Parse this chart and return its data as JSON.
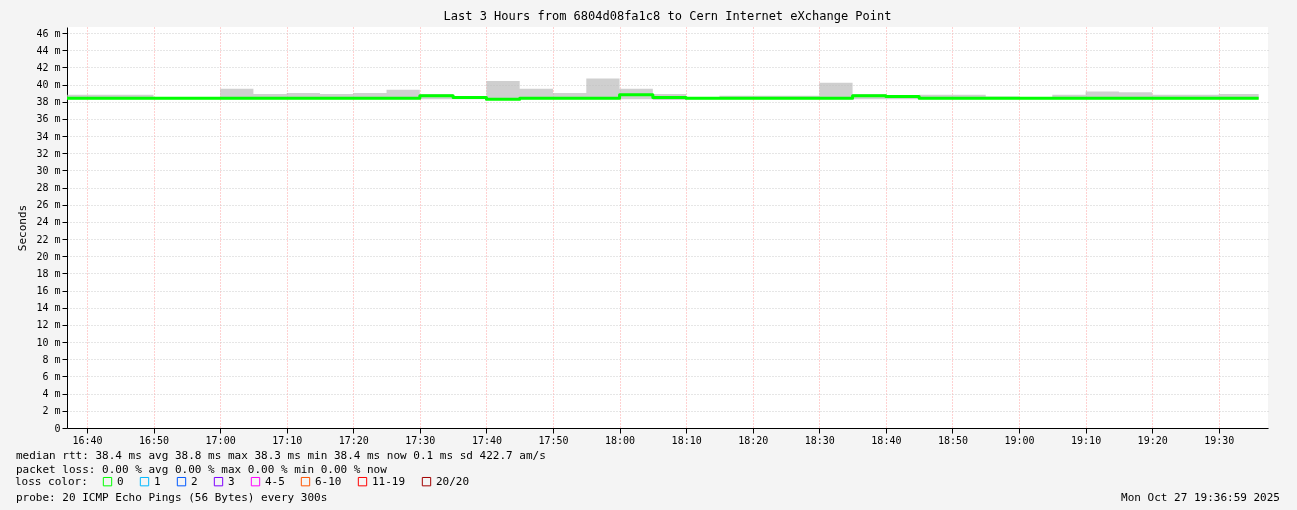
{
  "chart_data": {
    "type": "step",
    "title": "Last 3 Hours from 6804d08fa1c8 to Cern Internet eXchange Point",
    "ylabel": "Seconds",
    "x": [
      16.6167,
      16.8333,
      16.9167,
      17.0,
      17.0833,
      17.1667,
      17.25,
      17.3333,
      17.4167,
      17.5,
      17.5833,
      17.6667,
      17.75,
      17.8333,
      17.9167,
      18.0,
      18.0833,
      18.1667,
      18.25,
      18.3333,
      18.4167,
      18.5,
      18.5833,
      18.6667,
      18.75,
      18.8333,
      18.9167,
      19.0,
      19.0833,
      19.1667,
      19.25,
      19.3333,
      19.4167,
      19.5,
      19.6
    ],
    "series": [
      {
        "name": "0",
        "color": "#00ff00",
        "values": [
          38.4,
          38.4,
          38.4,
          38.4,
          38.4,
          38.4,
          38.4,
          38.4,
          38.4,
          38.7,
          38.5,
          38.3,
          38.4,
          38.4,
          38.4,
          38.8,
          38.5,
          38.4,
          38.4,
          38.4,
          38.4,
          38.4,
          38.7,
          38.6,
          38.4,
          38.4,
          38.4,
          38.4,
          38.4,
          38.4,
          38.4,
          38.4,
          38.4,
          38.4,
          38.4
        ],
        "lower": [
          38.3,
          38.3,
          38.3,
          38.3,
          38.3,
          38.3,
          38.3,
          38.3,
          38.3,
          38.3,
          38.3,
          38.2,
          38.3,
          38.3,
          38.3,
          38.3,
          38.2,
          38.3,
          38.3,
          38.3,
          38.3,
          38.3,
          38.3,
          38.3,
          38.3,
          38.3,
          38.3,
          38.3,
          38.3,
          38.3,
          38.3,
          38.3,
          38.3,
          38.3,
          38.3
        ],
        "upper": [
          38.8,
          38.5,
          38.5,
          39.5,
          38.9,
          39.0,
          38.9,
          39.0,
          39.4,
          38.9,
          38.5,
          40.4,
          39.5,
          39.0,
          40.7,
          39.5,
          38.9,
          38.5,
          38.7,
          38.7,
          38.7,
          40.2,
          38.9,
          38.5,
          38.8,
          38.8,
          38.6,
          38.5,
          38.8,
          39.2,
          39.1,
          38.8,
          38.8,
          38.9,
          38.9
        ]
      },
      {
        "name": "1",
        "color": "#00b8ff",
        "values": [
          null,
          null,
          null,
          null,
          null,
          null,
          null,
          null,
          null,
          null,
          null,
          null,
          null,
          null,
          null,
          null,
          null,
          null,
          null,
          null,
          null,
          null,
          null,
          null,
          null,
          null,
          null,
          null,
          null,
          null,
          null,
          null,
          null,
          null,
          null
        ]
      },
      {
        "name": "2",
        "color": "#0059ff",
        "values": [
          null,
          null,
          null,
          null,
          null,
          null,
          null,
          null,
          null,
          null,
          null,
          null,
          null,
          null,
          null,
          null,
          null,
          null,
          null,
          null,
          null,
          null,
          null,
          null,
          null,
          null,
          null,
          null,
          null,
          null,
          null,
          null,
          null,
          null,
          null
        ]
      },
      {
        "name": "3",
        "color": "#7e00ff",
        "values": [
          null,
          null,
          null,
          null,
          null,
          null,
          null,
          null,
          null,
          null,
          null,
          null,
          null,
          null,
          null,
          null,
          null,
          null,
          null,
          null,
          null,
          null,
          null,
          null,
          null,
          null,
          null,
          null,
          null,
          null,
          null,
          null,
          null,
          null,
          null
        ]
      },
      {
        "name": "4-5",
        "color": "#ff00ff",
        "values": [
          null,
          null,
          null,
          null,
          null,
          null,
          null,
          null,
          null,
          null,
          null,
          null,
          null,
          null,
          null,
          null,
          null,
          null,
          null,
          null,
          null,
          null,
          null,
          null,
          null,
          null,
          null,
          null,
          null,
          null,
          null,
          null,
          null,
          null,
          null
        ]
      },
      {
        "name": "6-10",
        "color": "#ff5500",
        "values": [
          null,
          null,
          null,
          null,
          null,
          null,
          null,
          null,
          null,
          null,
          null,
          null,
          null,
          null,
          null,
          null,
          null,
          null,
          null,
          null,
          null,
          null,
          null,
          null,
          null,
          null,
          null,
          null,
          null,
          null,
          null,
          null,
          null,
          null,
          null
        ]
      },
      {
        "name": "11-19",
        "color": "#ff0000",
        "values": [
          null,
          null,
          null,
          null,
          null,
          null,
          null,
          null,
          null,
          null,
          null,
          null,
          null,
          null,
          null,
          null,
          null,
          null,
          null,
          null,
          null,
          null,
          null,
          null,
          null,
          null,
          null,
          null,
          null,
          null,
          null,
          null,
          null,
          null,
          null
        ]
      },
      {
        "name": "20/20",
        "color": "#a10000",
        "values": [
          null,
          null,
          null,
          null,
          null,
          null,
          null,
          null,
          null,
          null,
          null,
          null,
          null,
          null,
          null,
          null,
          null,
          null,
          null,
          null,
          null,
          null,
          null,
          null,
          null,
          null,
          null,
          null,
          null,
          null,
          null,
          null,
          null,
          null,
          null
        ]
      }
    ],
    "legend_title": "loss color:",
    "legend": "bottom left",
    "xlim": [
      16.6167,
      19.6233
    ],
    "xticks": [
      {
        "value": 16.6667,
        "label": "16:40"
      },
      {
        "value": 16.8333,
        "label": "16:50"
      },
      {
        "value": 17.0,
        "label": "17:00"
      },
      {
        "value": 17.1667,
        "label": "17:10"
      },
      {
        "value": 17.3333,
        "label": "17:20"
      },
      {
        "value": 17.5,
        "label": "17:30"
      },
      {
        "value": 17.6667,
        "label": "17:40"
      },
      {
        "value": 17.8333,
        "label": "17:50"
      },
      {
        "value": 18.0,
        "label": "18:00"
      },
      {
        "value": 18.1667,
        "label": "18:10"
      },
      {
        "value": 18.3333,
        "label": "18:20"
      },
      {
        "value": 18.5,
        "label": "18:30"
      },
      {
        "value": 18.6667,
        "label": "18:40"
      },
      {
        "value": 18.8333,
        "label": "18:50"
      },
      {
        "value": 19.0,
        "label": "19:00"
      },
      {
        "value": 19.1667,
        "label": "19:10"
      },
      {
        "value": 19.3333,
        "label": "19:20"
      },
      {
        "value": 19.5,
        "label": "19:30"
      }
    ],
    "ylim": [
      0,
      46.7
    ],
    "yticks": [
      0,
      {
        "value": 2,
        "label": "2 m"
      },
      {
        "value": 4,
        "label": "4 m"
      },
      {
        "value": 6,
        "label": "6 m"
      },
      {
        "value": 8,
        "label": "8 m"
      },
      {
        "value": 10,
        "label": "10 m"
      },
      {
        "value": 12,
        "label": "12 m"
      },
      {
        "value": 14,
        "label": "14 m"
      },
      {
        "value": 16,
        "label": "16 m"
      },
      {
        "value": 18,
        "label": "18 m"
      },
      {
        "value": 20,
        "label": "20 m"
      },
      {
        "value": 22,
        "label": "22 m"
      },
      {
        "value": 24,
        "label": "24 m"
      },
      {
        "value": 26,
        "label": "26 m"
      },
      {
        "value": 28,
        "label": "28 m"
      },
      {
        "value": 30,
        "label": "30 m"
      },
      {
        "value": 32,
        "label": "32 m"
      },
      {
        "value": 34,
        "label": "34 m"
      },
      {
        "value": 36,
        "label": "36 m"
      },
      {
        "value": 38,
        "label": "38 m"
      },
      {
        "value": 40,
        "label": "40 m"
      },
      {
        "value": 42,
        "label": "42 m"
      },
      {
        "value": 44,
        "label": "44 m"
      },
      {
        "value": 46,
        "label": "46 m"
      }
    ],
    "grid": true,
    "line_style": "solid",
    "marker": "none",
    "annotations": [
      "median rtt:  38.4 ms avg  38.8 ms max  38.3 ms min  38.4 ms now  0.1 ms sd  422.7   am/s",
      "packet loss: 0.00 % avg  0.00 % max  0.00 % min  0.00 % now",
      "probe:       20 ICMP Echo Pings (56 Bytes) every 300s",
      "Mon Oct 27 19:36:59 2025"
    ]
  }
}
